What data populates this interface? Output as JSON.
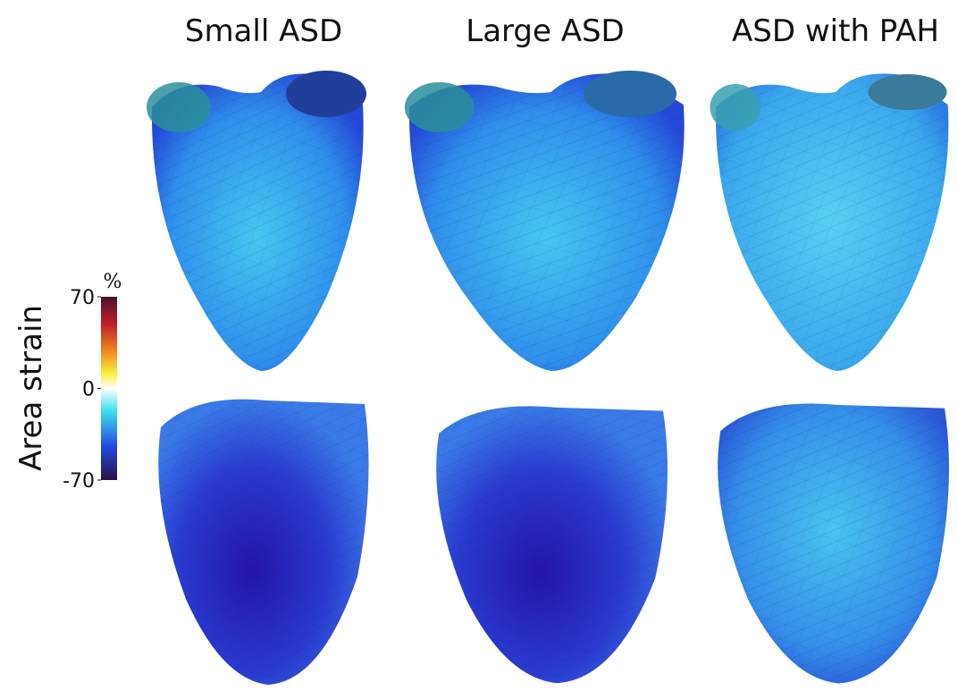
{
  "columns": [
    "Small ASD",
    "Large ASD",
    "ASD with PAH"
  ],
  "colorbar": {
    "label": "Area strain",
    "unit": "%",
    "ticks": [
      70,
      0,
      -70
    ]
  }
}
